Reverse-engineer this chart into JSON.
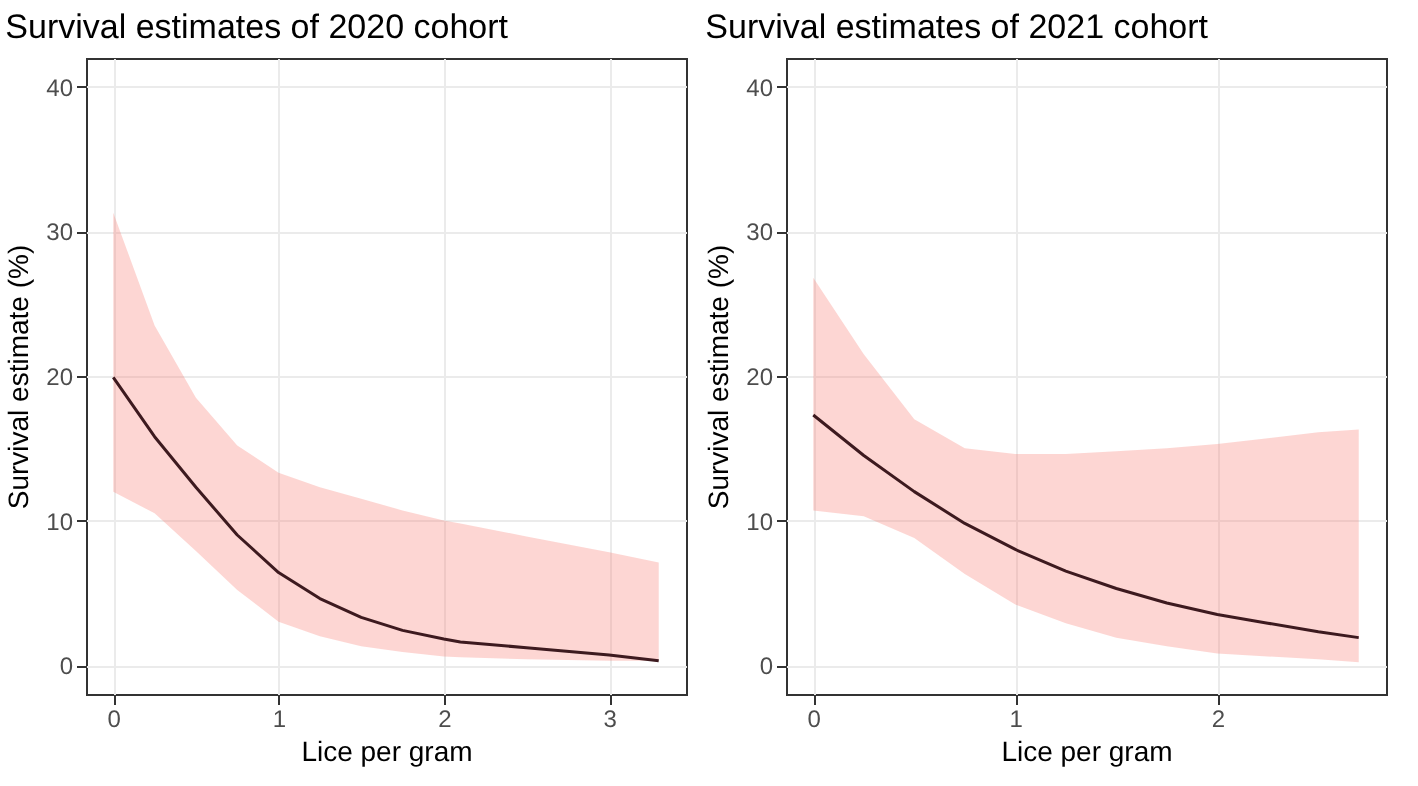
{
  "chart_data": [
    {
      "type": "line",
      "title": "Survival estimates of 2020 cohort",
      "xlabel": "Lice per gram",
      "ylabel": "Survival estimate (%)",
      "x": [
        0,
        0.25,
        0.5,
        0.75,
        1,
        1.25,
        1.5,
        1.75,
        2,
        2.1,
        2.5,
        3,
        3.3
      ],
      "series": [
        {
          "color": "#3d1a1f",
          "values": [
            19.9,
            15.8,
            12.3,
            9.0,
            6.4,
            4.6,
            3.3,
            2.4,
            1.8,
            1.6,
            1.2,
            0.7,
            0.3
          ],
          "lower": [
            12.0,
            10.5,
            7.9,
            5.2,
            3.0,
            2.0,
            1.3,
            0.9,
            0.6,
            0.55,
            0.4,
            0.3,
            0.3
          ],
          "upper": [
            31.3,
            23.5,
            18.5,
            15.2,
            13.3,
            12.3,
            11.5,
            10.7,
            10.0,
            9.8,
            8.9,
            7.8,
            7.1
          ]
        }
      ],
      "xlim": [
        -0.165,
        3.465
      ],
      "ylim": [
        -2,
        42
      ],
      "xticks": [
        0,
        1,
        2,
        3
      ],
      "yticks": [
        0,
        10,
        20,
        30,
        40
      ],
      "grid": true
    },
    {
      "type": "line",
      "title": "Survival estimates of 2021 cohort",
      "xlabel": "Lice per gram",
      "ylabel": "Survival estimate (%)",
      "x": [
        0,
        0.25,
        0.5,
        0.75,
        1,
        1.25,
        1.5,
        1.75,
        2,
        2.25,
        2.5,
        2.7
      ],
      "series": [
        {
          "color": "#3d1a1f",
          "values": [
            17.3,
            14.5,
            12.0,
            9.8,
            8.0,
            6.5,
            5.3,
            4.3,
            3.5,
            2.9,
            2.3,
            1.9
          ],
          "lower": [
            10.7,
            10.3,
            8.8,
            6.3,
            4.2,
            2.9,
            1.9,
            1.3,
            0.8,
            0.6,
            0.4,
            0.2
          ],
          "upper": [
            26.8,
            21.5,
            17.0,
            15.0,
            14.6,
            14.6,
            14.8,
            15.0,
            15.3,
            15.7,
            16.1,
            16.3
          ]
        }
      ],
      "xlim": [
        -0.135,
        2.835
      ],
      "ylim": [
        -2,
        42
      ],
      "xticks": [
        0,
        1,
        2
      ],
      "yticks": [
        0,
        10,
        20,
        30,
        40
      ],
      "grid": true
    }
  ]
}
